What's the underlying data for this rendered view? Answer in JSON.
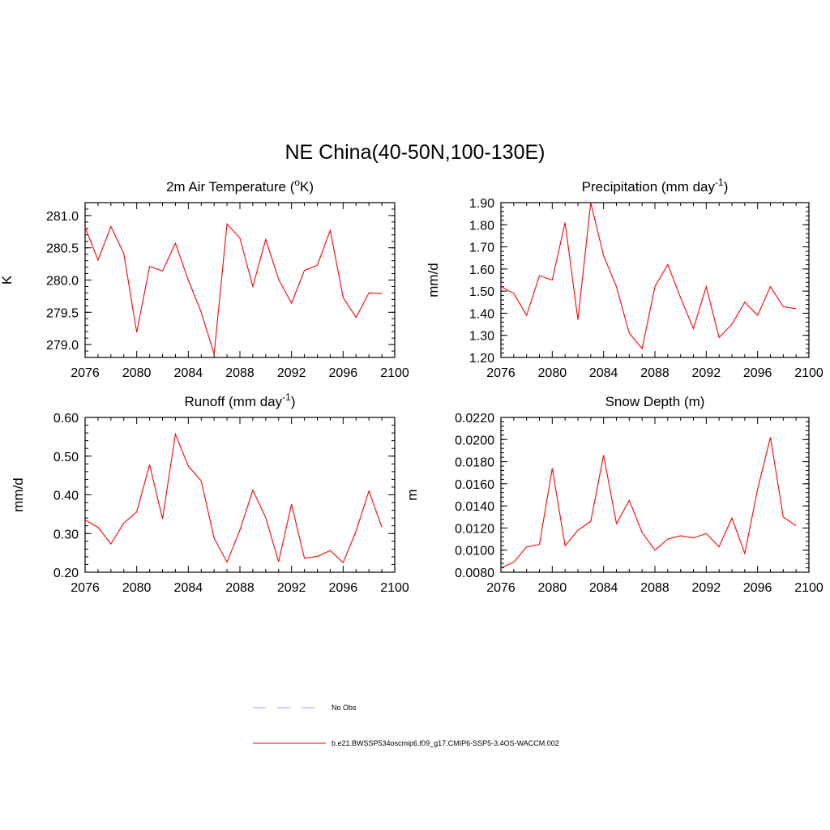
{
  "main_title": "NE China(40-50N,100-130E)",
  "legend": [
    {
      "label": "No Obs",
      "color": "#9999ee",
      "style": "dashed"
    },
    {
      "label": "b.e21.BWSSP534oscmip6.f09_g17.CMIP6-SSP5-3.4OS-WACCM.002",
      "color": "#ff0000",
      "style": "solid"
    }
  ],
  "chart_data": [
    {
      "type": "line",
      "title": "2m Air Temperature (",
      "title_sup": "o",
      "title_tail": "K)",
      "ylabel": "K",
      "xlim": [
        2076,
        2100
      ],
      "ylim": [
        278.8,
        281.2
      ],
      "xticks": [
        2076,
        2080,
        2084,
        2088,
        2092,
        2096,
        2100
      ],
      "xtick_labels": [
        "2076",
        "2080",
        "2084",
        "2088",
        "2092",
        "2096",
        "2100"
      ],
      "yticks": [
        279.0,
        279.5,
        280.0,
        280.5,
        281.0
      ],
      "ytick_labels": [
        "279.0",
        "279.5",
        "280.0",
        "280.5",
        "281.0"
      ],
      "series": [
        {
          "color": "#ff0000",
          "x": [
            2076,
            2077,
            2078,
            2079,
            2080,
            2081,
            2082,
            2083,
            2084,
            2085,
            2086,
            2087,
            2088,
            2089,
            2090,
            2091,
            2092,
            2093,
            2094,
            2095,
            2096,
            2097,
            2098,
            2099
          ],
          "y": [
            280.82,
            280.31,
            280.83,
            280.41,
            279.19,
            280.21,
            280.14,
            280.57,
            280.0,
            279.5,
            278.85,
            280.87,
            280.65,
            279.9,
            280.63,
            280.01,
            279.64,
            280.15,
            280.23,
            280.77,
            279.73,
            279.42,
            279.8,
            279.79
          ]
        }
      ]
    },
    {
      "type": "line",
      "title": "Precipitation (mm day",
      "title_sup": "-1",
      "title_tail": ")",
      "ylabel": "mm/d",
      "xlim": [
        2076,
        2100
      ],
      "ylim": [
        1.2,
        1.9
      ],
      "xticks": [
        2076,
        2080,
        2084,
        2088,
        2092,
        2096,
        2100
      ],
      "xtick_labels": [
        "2076",
        "2080",
        "2084",
        "2088",
        "2092",
        "2096",
        "2100"
      ],
      "yticks": [
        1.2,
        1.3,
        1.4,
        1.5,
        1.6,
        1.7,
        1.8,
        1.9
      ],
      "ytick_labels": [
        "1.20",
        "1.30",
        "1.40",
        "1.50",
        "1.60",
        "1.70",
        "1.80",
        "1.90"
      ],
      "series": [
        {
          "color": "#ff0000",
          "x": [
            2076,
            2077,
            2078,
            2079,
            2080,
            2081,
            2082,
            2083,
            2084,
            2085,
            2086,
            2087,
            2088,
            2089,
            2090,
            2091,
            2092,
            2093,
            2094,
            2095,
            2096,
            2097,
            2098,
            2099
          ],
          "y": [
            1.52,
            1.49,
            1.39,
            1.57,
            1.55,
            1.81,
            1.37,
            1.9,
            1.66,
            1.52,
            1.31,
            1.24,
            1.52,
            1.62,
            1.47,
            1.33,
            1.52,
            1.29,
            1.35,
            1.45,
            1.39,
            1.52,
            1.43,
            1.42
          ]
        }
      ]
    },
    {
      "type": "line",
      "title": "Runoff (mm day",
      "title_sup": "-1",
      "title_tail": ")",
      "ylabel": "mm/d",
      "xlim": [
        2076,
        2100
      ],
      "ylim": [
        0.2,
        0.6
      ],
      "xticks": [
        2076,
        2080,
        2084,
        2088,
        2092,
        2096,
        2100
      ],
      "xtick_labels": [
        "2076",
        "2080",
        "2084",
        "2088",
        "2092",
        "2096",
        "2100"
      ],
      "yticks": [
        0.2,
        0.3,
        0.4,
        0.5,
        0.6
      ],
      "ytick_labels": [
        "0.20",
        "0.30",
        "0.40",
        "0.50",
        "0.60"
      ],
      "series": [
        {
          "color": "#ff0000",
          "x": [
            2076,
            2077,
            2078,
            2079,
            2080,
            2081,
            2082,
            2083,
            2084,
            2085,
            2086,
            2087,
            2088,
            2089,
            2090,
            2091,
            2092,
            2093,
            2094,
            2095,
            2096,
            2097,
            2098,
            2099
          ],
          "y": [
            0.335,
            0.316,
            0.273,
            0.327,
            0.356,
            0.478,
            0.338,
            0.557,
            0.474,
            0.436,
            0.288,
            0.226,
            0.309,
            0.412,
            0.341,
            0.227,
            0.376,
            0.236,
            0.241,
            0.256,
            0.225,
            0.306,
            0.41,
            0.316
          ]
        }
      ]
    },
    {
      "type": "line",
      "title": "Snow Depth (m)",
      "title_sup": "",
      "title_tail": "",
      "ylabel": "m",
      "xlim": [
        2076,
        2100
      ],
      "ylim": [
        0.008,
        0.022
      ],
      "xticks": [
        2076,
        2080,
        2084,
        2088,
        2092,
        2096,
        2100
      ],
      "xtick_labels": [
        "2076",
        "2080",
        "2084",
        "2088",
        "2092",
        "2096",
        "2100"
      ],
      "yticks": [
        0.008,
        0.01,
        0.012,
        0.014,
        0.016,
        0.018,
        0.02,
        0.022
      ],
      "ytick_labels": [
        "0.0080",
        "0.0100",
        "0.0120",
        "0.0140",
        "0.0160",
        "0.0180",
        "0.0200",
        "0.0220"
      ],
      "series": [
        {
          "color": "#ff0000",
          "x": [
            2076,
            2077,
            2078,
            2079,
            2080,
            2081,
            2082,
            2083,
            2084,
            2085,
            2086,
            2087,
            2088,
            2089,
            2090,
            2091,
            2092,
            2093,
            2094,
            2095,
            2096,
            2097,
            2098,
            2099
          ],
          "y": [
            0.0084,
            0.0089,
            0.0103,
            0.0105,
            0.0174,
            0.0104,
            0.0118,
            0.0126,
            0.0186,
            0.0124,
            0.0145,
            0.0116,
            0.01,
            0.011,
            0.0113,
            0.0111,
            0.0115,
            0.0103,
            0.0129,
            0.0097,
            0.0155,
            0.0202,
            0.013,
            0.0122
          ]
        }
      ]
    }
  ]
}
